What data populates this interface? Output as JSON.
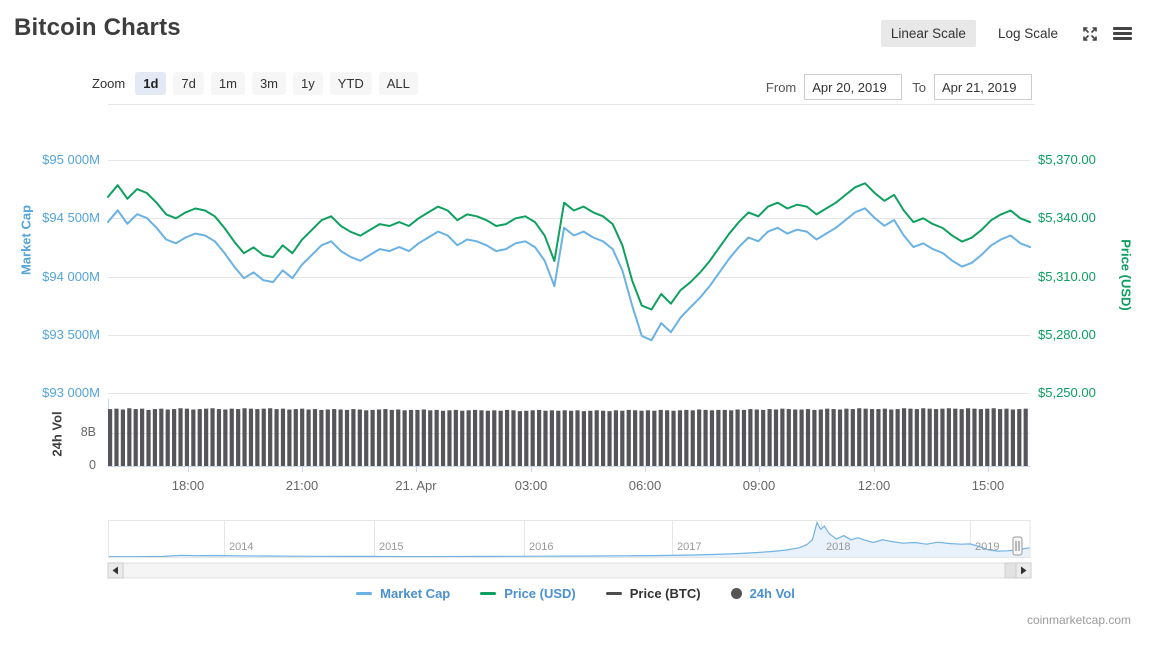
{
  "header": {
    "title": "Bitcoin Charts",
    "linear_scale": "Linear Scale",
    "log_scale": "Log Scale"
  },
  "toolbar": {
    "zoom_label": "Zoom",
    "ranges": [
      "1d",
      "7d",
      "1m",
      "3m",
      "1y",
      "YTD",
      "ALL"
    ],
    "active_range": "1d",
    "from_label": "From",
    "from_value": "Apr 20, 2019",
    "to_label": "To",
    "to_value": "Apr 21, 2019"
  },
  "legend": {
    "items": [
      {
        "label": "Market Cap",
        "marker": "line",
        "marker_color": "#6ab2e4",
        "label_color": "#4a90d2"
      },
      {
        "label": "Price (USD)",
        "marker": "line",
        "marker_color": "#0fa05f",
        "label_color": "#4a90d2"
      },
      {
        "label": "Price (BTC)",
        "marker": "line",
        "marker_color": "#4d4d4d",
        "label_color": "#333333"
      },
      {
        "label": "24h Vol",
        "marker": "circle",
        "marker_color": "#555555",
        "label_color": "#4a90d2"
      }
    ]
  },
  "footer": {
    "watermark": "coinmarketcap.com"
  },
  "chart_data": {
    "type": "line",
    "title": "Bitcoin Charts",
    "range_selected": "1d",
    "x": {
      "start": "Apr 20, 2019 ~16:00",
      "end": "Apr 21, 2019 ~16:00",
      "tick_labels": [
        "18:00",
        "21:00",
        "21. Apr",
        "03:00",
        "06:00",
        "09:00",
        "12:00",
        "15:00"
      ]
    },
    "axes": {
      "market_cap": {
        "title": "Market Cap",
        "tick_labels": [
          "$95 000M",
          "$94 500M",
          "$94 000M",
          "$93 500M",
          "$93 000M"
        ],
        "max": 95000,
        "min": 93000,
        "unit": "USD millions"
      },
      "price_usd": {
        "title": "Price (USD)",
        "tick_labels": [
          "$5,370.00",
          "$5,340.00",
          "$5,310.00",
          "$5,280.00",
          "$5,250.00"
        ],
        "max": 5370,
        "min": 5250
      },
      "volume": {
        "title": "24h Vol",
        "tick_labels": [
          "8B",
          "0"
        ],
        "max_label_value": 8,
        "unit": "USD billions"
      }
    },
    "series": [
      {
        "name": "Market Cap",
        "type": "line",
        "color": "#6ab2e4",
        "visible": true,
        "values": [
          94468,
          94568,
          94452,
          94535,
          94502,
          94418,
          94318,
          94285,
          94335,
          94368,
          94352,
          94302,
          94202,
          94085,
          93985,
          94035,
          93968,
          93952,
          94052,
          93985,
          94102,
          94185,
          94268,
          94302,
          94218,
          94168,
          94135,
          94185,
          94235,
          94218,
          94252,
          94218,
          94285,
          94335,
          94385,
          94352,
          94268,
          94318,
          94302,
          94268,
          94218,
          94235,
          94285,
          94302,
          94252,
          94135,
          93918,
          94418,
          94352,
          94385,
          94335,
          94302,
          94235,
          94052,
          93752,
          93490,
          93452,
          93600,
          93522,
          93648,
          93735,
          93818,
          93918,
          94035,
          94152,
          94252,
          94335,
          94302,
          94385,
          94418,
          94368,
          94402,
          94385,
          94318,
          94368,
          94418,
          94485,
          94552,
          94585,
          94502,
          94435,
          94485,
          94352,
          94252,
          94285,
          94235,
          94202,
          94135,
          94085,
          94118,
          94185,
          94268,
          94318,
          94352,
          94285,
          94252
        ]
      },
      {
        "name": "Price (USD)",
        "type": "line",
        "color": "#0fa05f",
        "visible": true,
        "values": [
          5351,
          5357,
          5350,
          5355,
          5353,
          5348,
          5342,
          5340,
          5343,
          5345,
          5344,
          5341,
          5335,
          5328,
          5322,
          5325,
          5321,
          5320,
          5326,
          5322,
          5329,
          5334,
          5339,
          5341,
          5336,
          5333,
          5331,
          5334,
          5337,
          5336,
          5338,
          5336,
          5340,
          5343,
          5346,
          5344,
          5339,
          5342,
          5341,
          5339,
          5336,
          5337,
          5340,
          5341,
          5338,
          5331,
          5318,
          5348,
          5344,
          5346,
          5343,
          5341,
          5337,
          5326,
          5308,
          5295,
          5293,
          5301,
          5296,
          5303,
          5307,
          5312,
          5318,
          5325,
          5332,
          5338,
          5343,
          5341,
          5346,
          5348,
          5345,
          5347,
          5346,
          5342,
          5345,
          5348,
          5352,
          5356,
          5358,
          5353,
          5349,
          5352,
          5344,
          5338,
          5340,
          5337,
          5335,
          5331,
          5328,
          5330,
          5334,
          5339,
          5342,
          5344,
          5340,
          5338
        ]
      },
      {
        "name": "Price (BTC)",
        "type": "line",
        "color": "#4d4d4d",
        "visible": false,
        "values": []
      },
      {
        "name": "24h Vol",
        "type": "column",
        "color": "#56565a",
        "visible": true,
        "unit": "B",
        "values": [
          13.8,
          13.9,
          13.7,
          14.0,
          13.8,
          13.9,
          13.6,
          13.8,
          13.9,
          13.7,
          13.8,
          14.0,
          13.9,
          13.7,
          13.8,
          13.9,
          14.0,
          13.8,
          13.7,
          13.9,
          13.8,
          14.0,
          13.9,
          13.8,
          13.9,
          14.0,
          13.8,
          13.9,
          13.7,
          13.8,
          13.9,
          13.7,
          13.8,
          13.6,
          13.7,
          13.8,
          13.7,
          13.6,
          13.8,
          13.7,
          13.5,
          13.6,
          13.7,
          13.8,
          13.6,
          13.7,
          13.5,
          13.6,
          13.6,
          13.7,
          13.5,
          13.6,
          13.4,
          13.5,
          13.6,
          13.4,
          13.5,
          13.6,
          13.5,
          13.4,
          13.5,
          13.4,
          13.6,
          13.5,
          13.3,
          13.4,
          13.5,
          13.6,
          13.4,
          13.5,
          13.4,
          13.5,
          13.4,
          13.5,
          13.3,
          13.4,
          13.5,
          13.4,
          13.3,
          13.5,
          13.4,
          13.6,
          13.5,
          13.4,
          13.5,
          13.4,
          13.6,
          13.5,
          13.4,
          13.5,
          13.6,
          13.5,
          13.7,
          13.6,
          13.5,
          13.6,
          13.6,
          13.5,
          13.7,
          13.6,
          13.8,
          13.7,
          13.6,
          13.8,
          13.7,
          13.9,
          13.8,
          13.7,
          13.7,
          13.8,
          13.6,
          13.7,
          13.9,
          13.8,
          13.7,
          13.9,
          13.8,
          14.0,
          13.9,
          13.8,
          13.8,
          13.9,
          13.7,
          13.8,
          14.0,
          13.9,
          13.8,
          14.0,
          13.9,
          13.8,
          13.9,
          14.0,
          13.9,
          13.8,
          14.0,
          13.9,
          13.8,
          13.9,
          14.0,
          13.8,
          13.9,
          13.7,
          13.8,
          13.9
        ]
      }
    ],
    "navigator": {
      "year_labels": [
        "2014",
        "2015",
        "2016",
        "2017",
        "2018",
        "2019"
      ],
      "line_color": "#71b3e2",
      "fill_color": "#e9f2fb",
      "points": [
        [
          0.0,
          0.012
        ],
        [
          0.03,
          0.01
        ],
        [
          0.06,
          0.018
        ],
        [
          0.08,
          0.05
        ],
        [
          0.095,
          0.038
        ],
        [
          0.12,
          0.044
        ],
        [
          0.14,
          0.034
        ],
        [
          0.17,
          0.028
        ],
        [
          0.2,
          0.024
        ],
        [
          0.23,
          0.02
        ],
        [
          0.26,
          0.018
        ],
        [
          0.29,
          0.016
        ],
        [
          0.32,
          0.012
        ],
        [
          0.35,
          0.013
        ],
        [
          0.38,
          0.015
        ],
        [
          0.41,
          0.017
        ],
        [
          0.44,
          0.021
        ],
        [
          0.47,
          0.023
        ],
        [
          0.5,
          0.025
        ],
        [
          0.53,
          0.03
        ],
        [
          0.56,
          0.034
        ],
        [
          0.59,
          0.04
        ],
        [
          0.61,
          0.046
        ],
        [
          0.635,
          0.058
        ],
        [
          0.66,
          0.075
        ],
        [
          0.685,
          0.1
        ],
        [
          0.705,
          0.13
        ],
        [
          0.72,
          0.16
        ],
        [
          0.735,
          0.2
        ],
        [
          0.75,
          0.27
        ],
        [
          0.758,
          0.36
        ],
        [
          0.764,
          0.5
        ],
        [
          0.769,
          1.0
        ],
        [
          0.773,
          0.8
        ],
        [
          0.777,
          0.9
        ],
        [
          0.782,
          0.68
        ],
        [
          0.79,
          0.52
        ],
        [
          0.798,
          0.62
        ],
        [
          0.806,
          0.5
        ],
        [
          0.813,
          0.56
        ],
        [
          0.82,
          0.5
        ],
        [
          0.83,
          0.42
        ],
        [
          0.84,
          0.5
        ],
        [
          0.85,
          0.45
        ],
        [
          0.862,
          0.4
        ],
        [
          0.875,
          0.42
        ],
        [
          0.888,
          0.37
        ],
        [
          0.9,
          0.43
        ],
        [
          0.912,
          0.39
        ],
        [
          0.925,
          0.37
        ],
        [
          0.935,
          0.38
        ],
        [
          0.945,
          0.3
        ],
        [
          0.955,
          0.21
        ],
        [
          0.965,
          0.17
        ],
        [
          0.975,
          0.18
        ],
        [
          0.985,
          0.2
        ],
        [
          1.0,
          0.27
        ]
      ]
    }
  }
}
